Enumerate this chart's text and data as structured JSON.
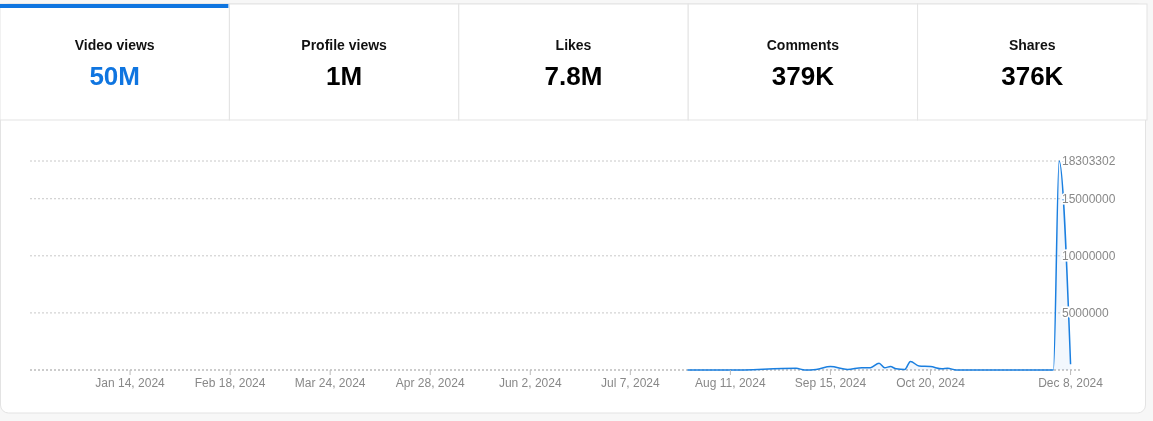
{
  "chart_data": [
    {
      "type": "other",
      "categories": [
        "Video views",
        "Profile views",
        "Likes",
        "Comments",
        "Shares"
      ],
      "value_labels": [
        "50M",
        "1M",
        "7.8M",
        "379K",
        "376K"
      ]
    },
    {
      "type": "area",
      "color": "#1a7fe0",
      "x": [
        "2024-07-27",
        "2024-08-11",
        "2024-09-03",
        "2024-09-06",
        "2024-09-10",
        "2024-09-15",
        "2024-09-21",
        "2024-09-26",
        "2024-09-29",
        "2024-10-02",
        "2024-10-04",
        "2024-10-06",
        "2024-10-08",
        "2024-10-11",
        "2024-10-13",
        "2024-10-16",
        "2024-10-20",
        "2024-10-24",
        "2024-10-26",
        "2024-10-29",
        "2024-11-24",
        "2024-12-02",
        "2024-12-04",
        "2024-12-08"
      ],
      "values": [
        0,
        0,
        150000,
        0,
        50000,
        300000,
        50000,
        200000,
        200000,
        600000,
        200000,
        300000,
        100000,
        50000,
        750000,
        350000,
        300000,
        100000,
        150000,
        0,
        0,
        0,
        18303302,
        500000
      ],
      "xlim": [
        "2023-12-10",
        "2024-12-12"
      ],
      "ylim": [
        0,
        18303302
      ],
      "xticks": [
        {
          "value": "2024-01-14",
          "label": "Jan 14, 2024"
        },
        {
          "value": "2024-02-18",
          "label": "Feb 18, 2024"
        },
        {
          "value": "2024-03-24",
          "label": "Mar 24, 2024"
        },
        {
          "value": "2024-04-28",
          "label": "Apr 28, 2024"
        },
        {
          "value": "2024-06-02",
          "label": "Jun 2, 2024"
        },
        {
          "value": "2024-07-07",
          "label": "Jul 7, 2024"
        },
        {
          "value": "2024-08-11",
          "label": "Aug 11, 2024"
        },
        {
          "value": "2024-09-15",
          "label": "Sep 15, 2024"
        },
        {
          "value": "2024-10-20",
          "label": "Oct 20, 2024"
        },
        {
          "value": "2024-12-08",
          "label": "Dec 8, 2024"
        }
      ],
      "yticks": [
        5000000,
        10000000,
        15000000,
        18303302
      ],
      "grid": "y"
    }
  ]
}
